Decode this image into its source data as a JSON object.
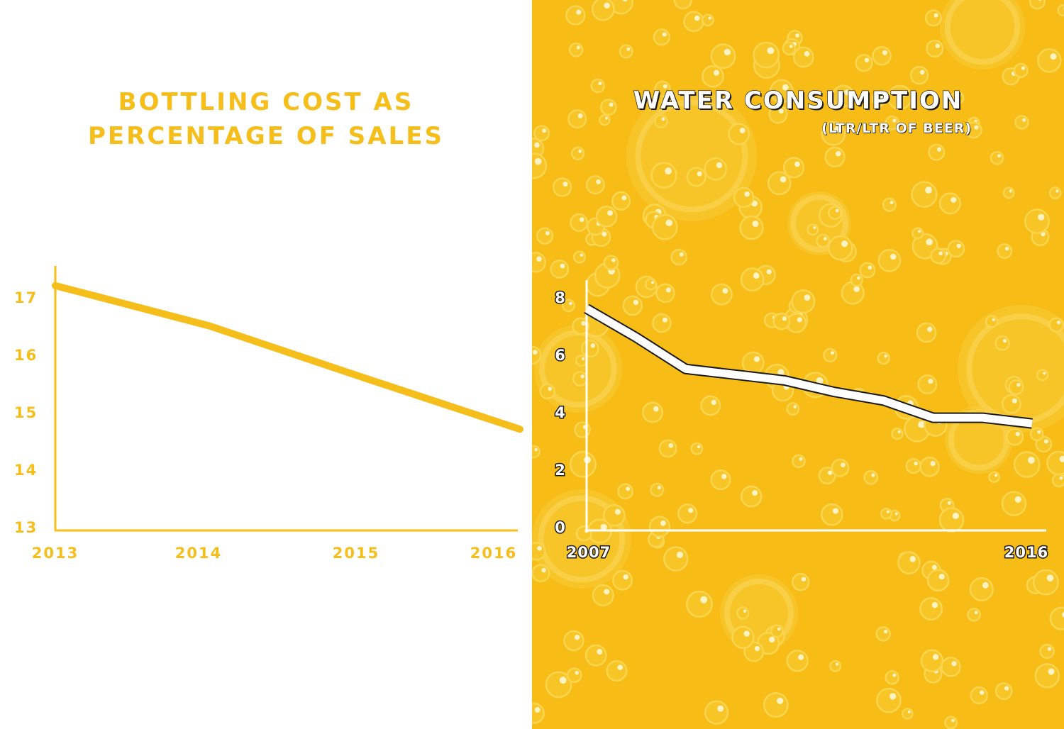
{
  "colors": {
    "left_background": "#ffffff",
    "right_background": "#f7bd16",
    "accent_yellow": "#f6be1b",
    "line_white": "#ffffff",
    "outline_dark": "#1a1a1a"
  },
  "left_chart": {
    "title_line1": "BOTTLING  COST AS",
    "title_line2": "PERCENTAGE OF SALES"
  },
  "right_chart": {
    "title": "WATER CONSUMPTION",
    "subtitle": "(LTR/LTR OF BEER)"
  },
  "chart_data": [
    {
      "type": "line",
      "title": "BOTTLING  COST AS PERCENTAGE OF SALES",
      "xlabel": "",
      "ylabel": "",
      "x": [
        2013,
        2014,
        2015,
        2016
      ],
      "x_tick_labels": [
        "2013",
        "2014",
        "2015",
        "2016"
      ],
      "y_tick_labels": [
        "17",
        "16",
        "15",
        "14",
        "13"
      ],
      "series": [
        {
          "values": [
            17.2,
            16.5,
            15.6,
            14.7
          ]
        }
      ],
      "ylim": [
        13,
        17.4
      ],
      "grid": false,
      "line_color": "#f6be1b"
    },
    {
      "type": "line",
      "title": "WATER CONSUMPTION",
      "subtitle": "(LTR/LTR OF BEER)",
      "xlabel": "",
      "ylabel": "",
      "x": [
        2007,
        2008,
        2009,
        2010,
        2011,
        2012,
        2013,
        2014,
        2015,
        2016
      ],
      "x_tick_labels": [
        "2007",
        "2016"
      ],
      "y_tick_labels": [
        "8",
        "6",
        "4",
        "2",
        "0"
      ],
      "series": [
        {
          "values": [
            7.6,
            6.6,
            5.5,
            5.3,
            5.1,
            4.7,
            4.4,
            3.8,
            3.8,
            3.6
          ]
        }
      ],
      "ylim": [
        0,
        8.5
      ],
      "grid": false,
      "line_color": "#ffffff"
    }
  ]
}
